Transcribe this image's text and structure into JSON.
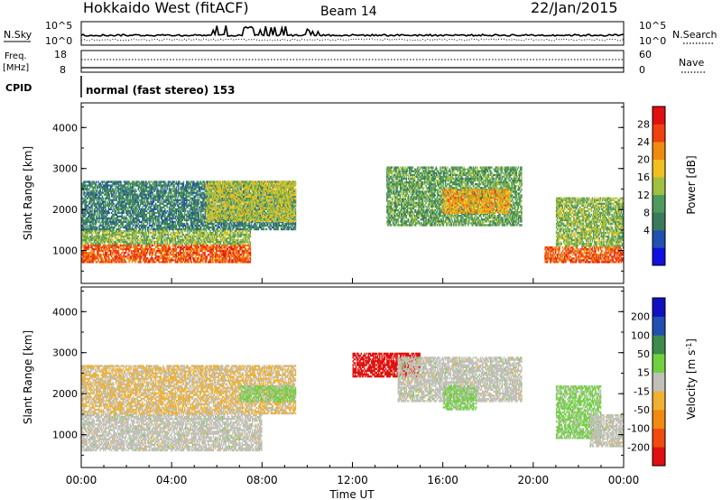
{
  "header": {
    "station": "Hokkaido West (fitACF)",
    "beam": "Beam 14",
    "date": "22/Jan/2015"
  },
  "nsky": {
    "label": "N.Sky",
    "right_label": "N.Search",
    "yticks": [
      "10^5",
      "10^0"
    ],
    "right_yticks": [
      "10^5",
      "10^0"
    ]
  },
  "freq": {
    "label_line1": "Freq.",
    "label_line2": "[MHz]",
    "yticks": [
      "18",
      "8"
    ],
    "right_label": "Nave",
    "right_yticks": [
      "60",
      "0"
    ]
  },
  "cpid": {
    "label": "CPID",
    "mode": "normal (fast stereo) 153"
  },
  "power_panel": {
    "ylabel": "Slant Range [km]",
    "yticks": [
      "4000",
      "3000",
      "2000",
      "1000"
    ],
    "colorbar_label": "Power [dB]",
    "colorbar_ticks": [
      "28",
      "24",
      "20",
      "16",
      "12",
      "8",
      "4"
    ]
  },
  "velocity_panel": {
    "ylabel": "Slant Range [km]",
    "yticks": [
      "4000",
      "3000",
      "2000",
      "1000"
    ],
    "colorbar_label": "Velocity [m s",
    "colorbar_label_sup": "-1",
    "colorbar_label_end": "]",
    "colorbar_ticks": [
      "200",
      "100",
      "50",
      "15",
      "-15",
      "-50",
      "-100",
      "-200"
    ]
  },
  "x_axis": {
    "label": "Time UT",
    "ticks": [
      "00:00",
      "04:00",
      "08:00",
      "12:00",
      "16:00",
      "20:00",
      "00:00"
    ]
  },
  "colors": {
    "power_scale": [
      "#1010e0",
      "#2050b0",
      "#3a7a5a",
      "#4e9a5e",
      "#a0c040",
      "#f0c020",
      "#f08a10",
      "#f04010",
      "#e01010"
    ],
    "velocity_scale": [
      "#e01010",
      "#f04a10",
      "#f08a10",
      "#f0b030",
      "#c0c0b8",
      "#70d040",
      "#3c8a4c",
      "#2050b0",
      "#1010c0"
    ]
  },
  "chart_data": [
    {
      "type": "heatmap",
      "title": "Hokkaido West (fitACF) Beam 14 22/Jan/2015",
      "xlabel": "Time UT",
      "ylabel": "Slant Range [km]",
      "xlim": [
        "00:00",
        "24:00"
      ],
      "ylim": [
        200,
        4600
      ],
      "colorbar": {
        "label": "Power [dB]",
        "range": [
          0,
          30
        ]
      },
      "regions": [
        {
          "t_start": 0.0,
          "t_end": 7.5,
          "range_low": 700,
          "range_high": 1150,
          "value": 24
        },
        {
          "t_start": 0.0,
          "t_end": 7.5,
          "range_low": 1150,
          "range_high": 1500,
          "value": 14
        },
        {
          "t_start": 0.0,
          "t_end": 9.5,
          "range_low": 1500,
          "range_high": 2700,
          "value": 9
        },
        {
          "t_start": 5.5,
          "t_end": 9.5,
          "range_low": 1700,
          "range_high": 2700,
          "value": 16
        },
        {
          "t_start": 13.5,
          "t_end": 19.5,
          "range_low": 1600,
          "range_high": 3050,
          "value": 12
        },
        {
          "t_start": 16.0,
          "t_end": 19.0,
          "range_low": 1900,
          "range_high": 2500,
          "value": 20
        },
        {
          "t_start": 20.5,
          "t_end": 24.0,
          "range_low": 700,
          "range_high": 1100,
          "value": 24
        },
        {
          "t_start": 21.0,
          "t_end": 24.0,
          "range_low": 1100,
          "range_high": 2300,
          "value": 14
        }
      ]
    },
    {
      "type": "heatmap",
      "title": "",
      "xlabel": "Time UT",
      "ylabel": "Slant Range [km]",
      "xlim": [
        "00:00",
        "24:00"
      ],
      "ylim": [
        200,
        4600
      ],
      "colorbar": {
        "label": "Velocity [m s^-1]",
        "range": [
          -250,
          250
        ]
      },
      "regions": [
        {
          "t_start": 0.0,
          "t_end": 8.0,
          "range_low": 600,
          "range_high": 1500,
          "value": 0
        },
        {
          "t_start": 0.0,
          "t_end": 9.5,
          "range_low": 1500,
          "range_high": 2700,
          "value": -30
        },
        {
          "t_start": 7.0,
          "t_end": 9.5,
          "range_low": 1800,
          "range_high": 2200,
          "value": 40
        },
        {
          "t_start": 12.0,
          "t_end": 15.0,
          "range_low": 2400,
          "range_high": 3000,
          "value": -220
        },
        {
          "t_start": 14.0,
          "t_end": 19.5,
          "range_low": 1800,
          "range_high": 2900,
          "value": 0
        },
        {
          "t_start": 16.0,
          "t_end": 17.5,
          "range_low": 1600,
          "range_high": 2200,
          "value": 40
        },
        {
          "t_start": 21.0,
          "t_end": 23.0,
          "range_low": 900,
          "range_high": 2200,
          "value": 40
        },
        {
          "t_start": 22.5,
          "t_end": 24.0,
          "range_low": 700,
          "range_high": 1500,
          "value": 0
        }
      ]
    }
  ]
}
